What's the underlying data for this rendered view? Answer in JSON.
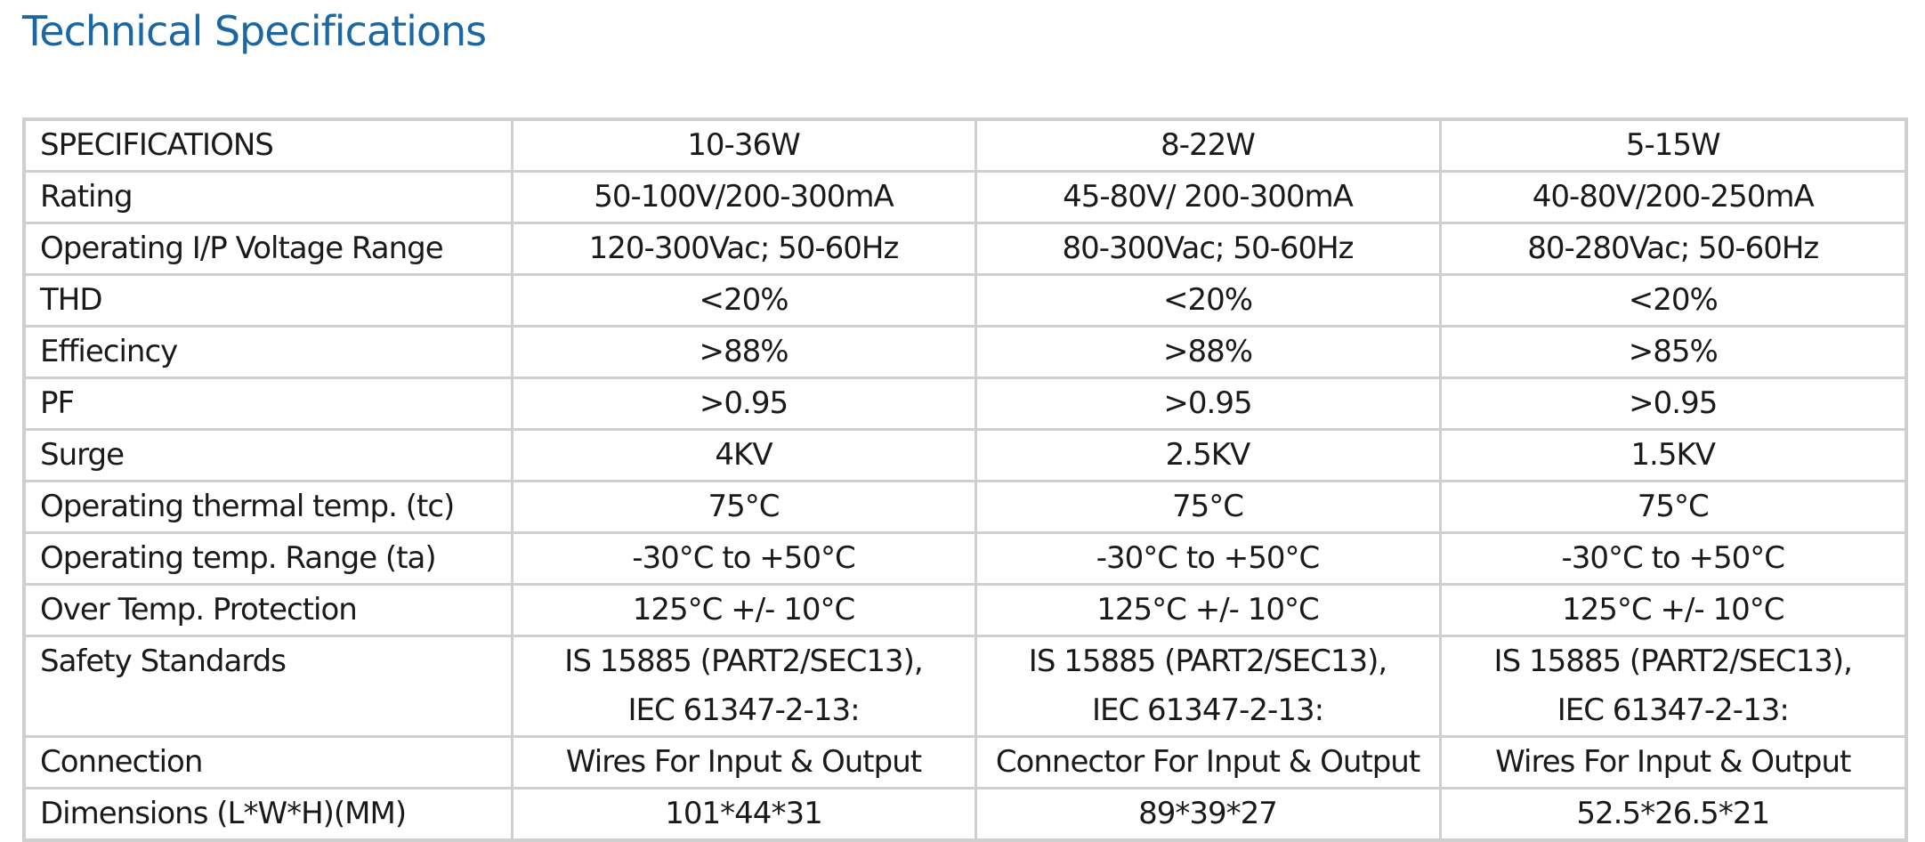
{
  "header": {
    "title": "Technical Specifications"
  },
  "table": {
    "columns": [
      "SPECIFICATIONS",
      "10-36W",
      "8-22W",
      "5-15W"
    ],
    "rows": [
      [
        "Rating",
        "50-100V/200-300mA",
        "45-80V/ 200-300mA",
        "40-80V/200-250mA"
      ],
      [
        "Operating I/P Voltage Range",
        "120-300Vac; 50-60Hz",
        "80-300Vac; 50-60Hz",
        "80-280Vac; 50-60Hz"
      ],
      [
        "THD",
        "<20%",
        "<20%",
        "<20%"
      ],
      [
        "Effiecincy",
        ">88%",
        ">88%",
        ">85%"
      ],
      [
        "PF",
        ">0.95",
        ">0.95",
        ">0.95"
      ],
      [
        "Surge",
        "4KV",
        "2.5KV",
        "1.5KV"
      ],
      [
        "Operating thermal temp. (tc)",
        "75°C",
        "75°C",
        "75°C"
      ],
      [
        "Operating temp. Range (ta)",
        "-30°C to +50°C",
        "-30°C to +50°C",
        "-30°C to +50°C"
      ],
      [
        "Over Temp. Protection",
        "125°C +/- 10°C",
        "125°C +/- 10°C",
        "125°C +/- 10°C"
      ],
      [
        "Safety Standards",
        [
          "IS 15885 (PART2/SEC13),",
          "IEC 61347-2-13:"
        ],
        [
          "IS 15885 (PART2/SEC13),",
          "IEC 61347-2-13:"
        ],
        [
          "IS 15885 (PART2/SEC13),",
          "IEC 61347-2-13:"
        ]
      ],
      [
        "Connection",
        "Wires For Input & Output",
        "Connector For Input & Output",
        "Wires For Input & Output"
      ],
      [
        "Dimensions (L*W*H)(MM)",
        "101*44*31",
        "89*39*27",
        "52.5*26.5*21"
      ]
    ]
  }
}
